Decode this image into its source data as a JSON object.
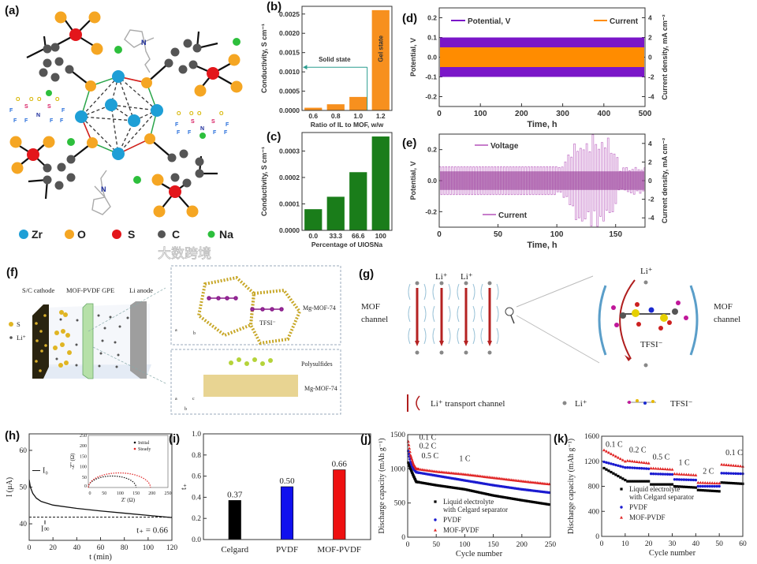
{
  "panel_labels": {
    "a": "(a)",
    "b": "(b)",
    "c": "(c)",
    "d": "(d)",
    "e": "(e)",
    "f": "(f)",
    "g": "(g)",
    "h": "(h)",
    "i": "(i)",
    "j": "(j)",
    "k": "(k)"
  },
  "panel_a": {
    "legend": [
      {
        "label": "Zr",
        "color": "#1e9fd6"
      },
      {
        "label": "O",
        "color": "#f5a623"
      },
      {
        "label": "S",
        "color": "#e3161b"
      },
      {
        "label": "C",
        "color": "#555555"
      },
      {
        "label": "Na",
        "color": "#2dbf3c"
      }
    ],
    "tfsi_atoms": {
      "O": "O",
      "S": "S",
      "N": "N",
      "F": "F",
      "minus": "-"
    },
    "cation_atom": "N",
    "cation_charge": "+"
  },
  "panel_f": {
    "cathode_label": "S/C cathode",
    "gpe_label": "MOF-PVDF GPE",
    "anode_label": "Li anode",
    "legend_s": "S",
    "legend_li": "Li⁺",
    "top_box": {
      "framework": "Mg-MOF-74",
      "anion": "TFSI⁻",
      "axis_a": "a",
      "axis_b": "b"
    },
    "bottom_box": {
      "guest": "Polysulfides",
      "framework": "Mg-MOF-74",
      "axis_a": "a",
      "axis_c": "c",
      "axis_b": "b"
    }
  },
  "panel_g": {
    "left_channel_label": [
      "MOF",
      "channel"
    ],
    "right_channel_label": [
      "MOF",
      "channel"
    ],
    "li_labels": [
      "Li⁺",
      "Li⁺"
    ],
    "right_li_label": "Li⁺",
    "tfsi_label": "TFSI⁻",
    "legend": {
      "transport": "Li⁺ transport channel",
      "li": "Li⁺",
      "tfsi": "TFSI⁻"
    }
  },
  "watermark": "大数跨境",
  "chart_data": [
    {
      "id": "b",
      "type": "bar",
      "categories": [
        "0.6",
        "0.8",
        "1.0",
        "1.2"
      ],
      "values": [
        7e-05,
        0.00016,
        0.00035,
        0.0026
      ],
      "ylim": [
        0,
        0.0027
      ],
      "yticks": [
        0,
        0.0005,
        0.001,
        0.0015,
        0.002,
        0.0025
      ],
      "ytick_labels": [
        "0.0000",
        "0.0005",
        "0.0010",
        "0.0015",
        "0.0020",
        "0.0025"
      ],
      "xlabel": "Ratio of IL to MOF, w/w",
      "ylabel": "Conductivity, S cm⁻¹",
      "color": "#f7901e",
      "annotations": {
        "solid": "Solid state",
        "gel": "Gel state"
      },
      "annotation_color": "#2a9d8f"
    },
    {
      "id": "c",
      "type": "bar",
      "categories": [
        "0.0",
        "33.3",
        "66.6",
        "100"
      ],
      "values": [
        8e-05,
        0.000127,
        0.00022,
        0.000355
      ],
      "ylim": [
        0,
        0.00037
      ],
      "yticks": [
        0,
        0.0001,
        0.0002,
        0.0003
      ],
      "ytick_labels": [
        "0.0000",
        "0.0001",
        "0.0002",
        "0.0003"
      ],
      "xlabel": "Percentage of UIOSNa",
      "ylabel": "Conductivity, S cm⁻¹",
      "color": "#1a7d1a"
    },
    {
      "id": "d",
      "type": "line",
      "xlim": [
        0,
        500
      ],
      "xticks": [
        0,
        100,
        200,
        300,
        400,
        500
      ],
      "xtick_labels": [
        "0",
        "100",
        "200",
        "300",
        "400",
        "500"
      ],
      "ylim": [
        -0.25,
        0.25
      ],
      "yticks": [
        -0.2,
        -0.1,
        0,
        0.1,
        0.2
      ],
      "ytick_labels": [
        "-0.2",
        "-0.1",
        "0.0",
        "0.1",
        "0.2"
      ],
      "y2lim": [
        -5,
        5
      ],
      "y2ticks": [
        -4,
        -2,
        0,
        2,
        4
      ],
      "y2tick_labels": [
        "-4",
        "-2",
        "0",
        "2",
        "4"
      ],
      "xlabel": "Time, h",
      "ylabel": "Potential, V",
      "y2label": "Current density, mA cm⁻²",
      "series": [
        {
          "name": "Potential, V",
          "amplitude": 0.1,
          "axis": "left",
          "color": "#7a16c8"
        },
        {
          "name": "Current",
          "amplitude": 1.0,
          "axis": "right",
          "color": "#ff8c00"
        }
      ]
    },
    {
      "id": "e",
      "type": "line",
      "xlim": [
        0,
        175
      ],
      "xticks": [
        0,
        50,
        100,
        150
      ],
      "xtick_labels": [
        "0",
        "50",
        "100",
        "150"
      ],
      "ylim": [
        -0.3,
        0.3
      ],
      "yticks": [
        -0.2,
        0,
        0.2
      ],
      "ytick_labels": [
        "-0.2",
        "0.0",
        "0.2"
      ],
      "y2lim": [
        -5,
        5
      ],
      "y2ticks": [
        -4,
        -2,
        0,
        2,
        4
      ],
      "y2tick_labels": [
        "-4",
        "-2",
        "0",
        "2",
        "4"
      ],
      "xlabel": "Time, h",
      "ylabel": "Potential, V",
      "y2label": "Current density, mA cm⁻²",
      "series": [
        {
          "name": "Voltage",
          "axis": "left",
          "color": "#c77dcb",
          "envelope": [
            [
              0,
              0.09
            ],
            [
              100,
              0.09
            ],
            [
              112,
              0.2
            ],
            [
              116,
              0.3
            ],
            [
              140,
              0.3
            ],
            [
              150,
              0.22
            ],
            [
              152,
              0.08
            ],
            [
              175,
              0.11
            ]
          ]
        },
        {
          "name": "Current",
          "axis": "right",
          "color": "#8e2c8e",
          "amplitude": 1.0
        }
      ]
    },
    {
      "id": "h",
      "type": "line",
      "xlim": [
        0,
        120
      ],
      "xticks": [
        0,
        20,
        40,
        60,
        80,
        100,
        120
      ],
      "xtick_labels": [
        "0",
        "20",
        "40",
        "60",
        "80",
        "100",
        "120"
      ],
      "ylim": [
        35.5,
        64.5
      ],
      "yticks": [
        40,
        50,
        60
      ],
      "ytick_labels": [
        "40",
        "50",
        "60"
      ],
      "xlabel": "t (min)",
      "ylabel": "I (μA)",
      "series": [
        {
          "name": "current",
          "color": "#111",
          "points": [
            [
              0,
              52
            ],
            [
              1,
              50
            ],
            [
              3,
              48.3
            ],
            [
              6,
              47
            ],
            [
              10,
              46.1
            ],
            [
              20,
              45.1
            ],
            [
              40,
              44.2
            ],
            [
              60,
              43.5
            ],
            [
              80,
              42.9
            ],
            [
              100,
              42.3
            ],
            [
              120,
              41.7
            ]
          ]
        }
      ],
      "steady_line": 41.8,
      "labels": {
        "i0": "I₀",
        "iss": "I∞",
        "tplus": "t₊ = 0.66"
      },
      "inset": {
        "xlim": [
          0,
          250
        ],
        "ylim": [
          0,
          250
        ],
        "xticks": [
          0,
          50,
          100,
          150,
          200,
          250
        ],
        "xtick_labels": [
          "0",
          "50",
          "100",
          "150",
          "200",
          "250"
        ],
        "yticks": [
          0,
          50,
          100,
          150,
          200,
          250
        ],
        "ytick_labels": [
          "0",
          "50",
          "100",
          "150",
          "200",
          "250"
        ],
        "xlabel": "Z' (Ω)",
        "ylabel": "-Z'' (Ω)",
        "series": [
          {
            "name": "Initial",
            "color": "#111",
            "diameter": 150,
            "start": 0,
            "peak": 55
          },
          {
            "name": "Steady",
            "color": "#e02424",
            "diameter": 195,
            "start": 0,
            "peak": 70
          }
        ]
      }
    },
    {
      "id": "i",
      "type": "bar",
      "categories": [
        "Celgard",
        "PVDF",
        "MOF-PVDF"
      ],
      "values": [
        0.37,
        0.5,
        0.66
      ],
      "value_labels": [
        "0.37",
        "0.50",
        "0.66"
      ],
      "colors": [
        "#000000",
        "#1010ee",
        "#ee1010"
      ],
      "ylim": [
        0,
        1.0
      ],
      "yticks": [
        0,
        0.2,
        0.4,
        0.6,
        0.8,
        1.0
      ],
      "ytick_labels": [
        "0.0",
        "0.2",
        "0.4",
        "0.6",
        "0.8",
        "1.0"
      ],
      "xlabel": "",
      "ylabel": "t₊"
    },
    {
      "id": "j",
      "type": "scatter",
      "xlim": [
        0,
        250
      ],
      "xticks": [
        0,
        50,
        100,
        150,
        200,
        250
      ],
      "xtick_labels": [
        "0",
        "50",
        "100",
        "150",
        "200",
        "250"
      ],
      "ylim": [
        0,
        1500
      ],
      "yticks": [
        0,
        500,
        1000,
        1500
      ],
      "ytick_labels": [
        "0",
        "500",
        "1000",
        "1500"
      ],
      "xlabel": "Cycle number",
      "ylabel": "Discharge capacity (mAh g⁻¹)",
      "rate_labels": [
        "0.1 C",
        "0.2 C",
        "0.5 C",
        "1 C"
      ],
      "series": [
        {
          "name": "Liquid electrolyte",
          "name2": "with Celgard separator",
          "color": "#000",
          "marker": "square",
          "points": [
            [
              1,
              1090
            ],
            [
              5,
              1000
            ],
            [
              10,
              900
            ],
            [
              15,
              810
            ],
            [
              50,
              760
            ],
            [
              100,
              700
            ],
            [
              150,
              610
            ],
            [
              200,
              540
            ],
            [
              250,
              475
            ]
          ]
        },
        {
          "name": "PVDF",
          "color": "#1b1bd0",
          "marker": "circle",
          "points": [
            [
              1,
              1260
            ],
            [
              5,
              1100
            ],
            [
              10,
              1000
            ],
            [
              15,
              950
            ],
            [
              50,
              900
            ],
            [
              100,
              830
            ],
            [
              150,
              760
            ],
            [
              200,
              700
            ],
            [
              250,
              650
            ]
          ]
        },
        {
          "name": "MOF-PVDF",
          "color": "#e02424",
          "marker": "triangle",
          "points": [
            [
              1,
              1400
            ],
            [
              5,
              1200
            ],
            [
              10,
              1070
            ],
            [
              15,
              1000
            ],
            [
              50,
              960
            ],
            [
              100,
              920
            ],
            [
              150,
              870
            ],
            [
              200,
              820
            ],
            [
              250,
              775
            ]
          ]
        }
      ]
    },
    {
      "id": "k",
      "type": "scatter",
      "xlim": [
        0,
        60
      ],
      "xticks": [
        0,
        10,
        20,
        30,
        40,
        50,
        60
      ],
      "xtick_labels": [
        "0",
        "10",
        "20",
        "30",
        "40",
        "50",
        "60"
      ],
      "ylim": [
        0,
        1600
      ],
      "yticks": [
        0,
        400,
        800,
        1200,
        1600
      ],
      "ytick_labels": [
        "0",
        "400",
        "800",
        "1200",
        "1600"
      ],
      "xlabel": "Cycle number",
      "ylabel": "Discharge capacity (mAh g⁻¹)",
      "rate_labels": [
        "0.1 C",
        "0.2 C",
        "0.5 C",
        "1 C",
        "2 C",
        "0.1 C"
      ],
      "series": [
        {
          "name": "Liquid electrolyte",
          "name2": "with Celgard separator",
          "color": "#000",
          "marker": "square",
          "segments": [
            [
              1090,
              900
            ],
            [
              880,
              880
            ],
            [
              830,
              830
            ],
            [
              800,
              780
            ],
            [
              740,
              720
            ],
            [
              860,
              840
            ]
          ]
        },
        {
          "name": "PVDF",
          "color": "#1b1bd0",
          "marker": "circle",
          "segments": [
            [
              1190,
              1100
            ],
            [
              1100,
              1080
            ],
            [
              1000,
              990
            ],
            [
              910,
              900
            ],
            [
              800,
              800
            ],
            [
              1010,
              1000
            ]
          ]
        },
        {
          "name": "MOF-PVDF",
          "color": "#e02424",
          "marker": "triangle",
          "segments": [
            [
              1380,
              1200
            ],
            [
              1210,
              1170
            ],
            [
              1090,
              1070
            ],
            [
              1000,
              980
            ],
            [
              860,
              850
            ],
            [
              1150,
              1120
            ]
          ]
        }
      ]
    }
  ]
}
